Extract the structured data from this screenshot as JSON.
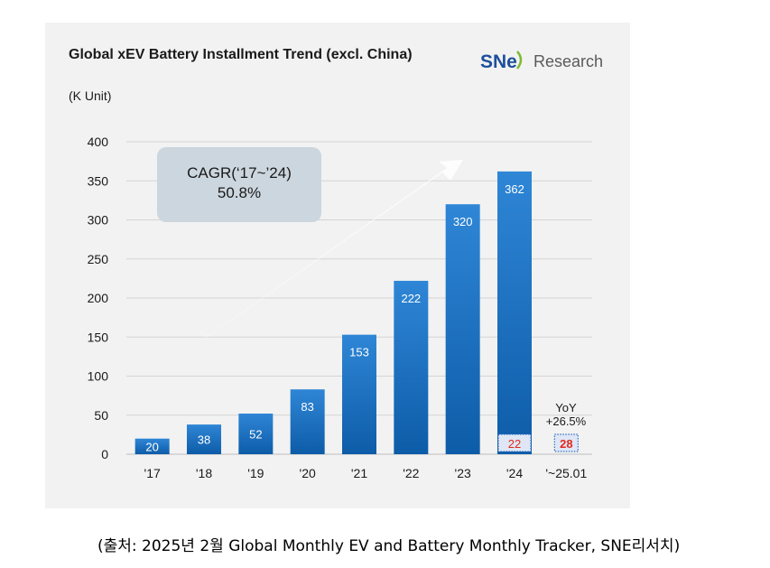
{
  "chart_data": {
    "type": "bar",
    "title": "Global xEV Battery Installment Trend (excl. China)",
    "ylabel": "(K Unit)",
    "xlabel": "",
    "categories": [
      "'17",
      "'18",
      "'19",
      "'20",
      "'21",
      "'22",
      "'23",
      "'24",
      "'~25.01"
    ],
    "values": [
      20,
      38,
      52,
      83,
      153,
      222,
      320,
      362,
      28
    ],
    "ylim": [
      0,
      400
    ],
    "yticks": [
      0,
      50,
      100,
      150,
      200,
      250,
      300,
      350,
      400
    ],
    "grid": true,
    "highlight": {
      "category": "'24",
      "value": 22
    },
    "annotations": {
      "cagr_line1": "CAGR(‘17~’24)",
      "cagr_line2": "50.8%",
      "yoy_line1": "YoY",
      "yoy_line2": "+26.5%"
    },
    "colors": {
      "bar_top": "#2f86d6",
      "bar_bottom": "#0d5ca8",
      "highlight_text": "#e0281e",
      "highlight_box": "#dfe6f5",
      "grid": "#d4d4d4",
      "panel": "#f2f2f2"
    }
  },
  "branding": {
    "logo_mark": "SNe",
    "logo_text": "Research"
  },
  "caption": "(출처: 2025년  2월  Global Monthly EV and Battery Monthly Tracker, SNE리서치)"
}
